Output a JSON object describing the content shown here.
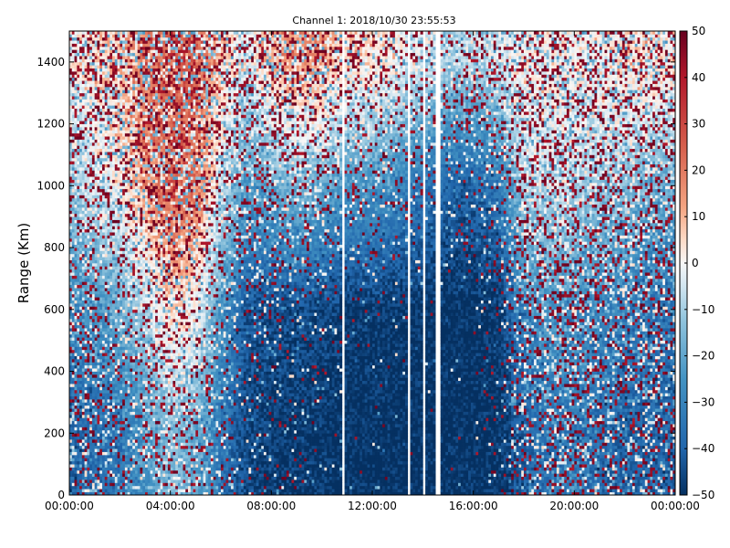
{
  "chart_data": {
    "type": "heatmap",
    "title": "Channel 1: 2018/10/30 23:55:53",
    "xlabel": "",
    "ylabel": "Range (Km)",
    "x_ticks": [
      "00:00:00",
      "04:00:00",
      "08:00:00",
      "12:00:00",
      "16:00:00",
      "20:00:00",
      "00:00:00"
    ],
    "x_range_hours": [
      0,
      24
    ],
    "y_ticks": [
      0,
      200,
      400,
      600,
      800,
      1000,
      1200,
      1400
    ],
    "ylim": [
      0,
      1500
    ],
    "colorbar": {
      "ticks": [
        50,
        40,
        30,
        20,
        10,
        0,
        -10,
        -20,
        -30,
        -40,
        -50
      ],
      "range": [
        -50,
        50
      ],
      "colormap": "RdBu_r"
    },
    "data_gaps_hours": [
      [
        10.78,
        10.92
      ],
      [
        13.38,
        13.5
      ],
      [
        13.98,
        14.1
      ],
      [
        14.55,
        14.68
      ]
    ],
    "pattern_profile": {
      "x_hours": [
        0,
        1,
        2,
        3,
        4,
        5,
        6,
        7,
        8,
        9,
        10,
        11,
        12,
        13,
        14,
        15,
        16,
        17,
        18,
        19,
        20,
        21,
        22,
        23,
        24
      ],
      "mean_value_by_range": [
        {
          "range_km": 200,
          "values": [
            -40,
            -38,
            -35,
            -25,
            -15,
            -20,
            -35,
            -45,
            -48,
            -48,
            -49,
            -50,
            -50,
            -50,
            -50,
            -50,
            -50,
            -49,
            -40,
            -35,
            -35,
            -38,
            -40,
            -40,
            -40
          ]
        },
        {
          "range_km": 600,
          "values": [
            -30,
            -25,
            -20,
            -10,
            5,
            0,
            -25,
            -42,
            -45,
            -45,
            -46,
            -48,
            -48,
            -49,
            -49,
            -50,
            -50,
            -48,
            -30,
            -25,
            -28,
            -30,
            -32,
            -35,
            -35
          ]
        },
        {
          "range_km": 1000,
          "values": [
            -15,
            -5,
            0,
            15,
            25,
            22,
            -5,
            -25,
            -20,
            -15,
            -20,
            -25,
            -25,
            -30,
            -35,
            -40,
            -40,
            -35,
            -10,
            -5,
            -10,
            -12,
            -15,
            -20,
            -20
          ]
        },
        {
          "range_km": 1400,
          "values": [
            0,
            5,
            10,
            20,
            25,
            25,
            10,
            -5,
            10,
            15,
            15,
            5,
            5,
            0,
            -5,
            -10,
            -10,
            -5,
            0,
            0,
            0,
            0,
            5,
            5,
            5
          ]
        }
      ],
      "speckle_probability_by_range": [
        {
          "range_km": 200,
          "values": [
            0.45,
            0.4,
            0.35,
            0.45,
            0.5,
            0.45,
            0.3,
            0.1,
            0.1,
            0.08,
            0.05,
            0.03,
            0.02,
            0.02,
            0.02,
            0.02,
            0.02,
            0.08,
            0.45,
            0.5,
            0.5,
            0.45,
            0.45,
            0.45,
            0.45
          ]
        },
        {
          "range_km": 600,
          "values": [
            0.5,
            0.45,
            0.4,
            0.5,
            0.55,
            0.5,
            0.35,
            0.15,
            0.2,
            0.15,
            0.1,
            0.08,
            0.06,
            0.04,
            0.03,
            0.02,
            0.02,
            0.1,
            0.55,
            0.6,
            0.6,
            0.55,
            0.5,
            0.5,
            0.5
          ]
        },
        {
          "range_km": 1000,
          "values": [
            0.6,
            0.6,
            0.55,
            0.6,
            0.65,
            0.6,
            0.55,
            0.45,
            0.5,
            0.5,
            0.45,
            0.35,
            0.3,
            0.25,
            0.2,
            0.15,
            0.15,
            0.3,
            0.6,
            0.65,
            0.65,
            0.6,
            0.6,
            0.6,
            0.6
          ]
        },
        {
          "range_km": 1400,
          "values": [
            0.7,
            0.7,
            0.7,
            0.7,
            0.7,
            0.7,
            0.7,
            0.65,
            0.7,
            0.7,
            0.7,
            0.65,
            0.6,
            0.55,
            0.5,
            0.5,
            0.5,
            0.6,
            0.7,
            0.7,
            0.7,
            0.7,
            0.7,
            0.7,
            0.7
          ]
        }
      ]
    }
  }
}
